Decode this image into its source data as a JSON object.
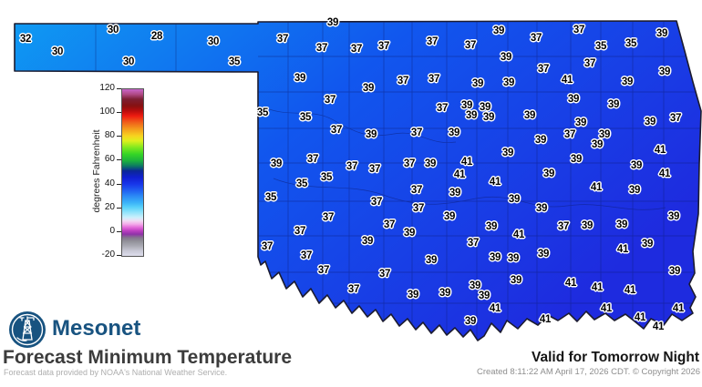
{
  "branding": {
    "logo_text": "Mesonet",
    "brand_color": "#185380"
  },
  "title": "Forecast Minimum Temperature",
  "subtitle": "Forecast data provided by NOAA's National Weather Service.",
  "validity": "Valid for Tomorrow Night",
  "created": "Created 8:11:22 AM April 17, 2026 CDT. © Copyright 2026",
  "map": {
    "region": "Oklahoma",
    "fill_west": "#0f9af2",
    "fill_mid": "#1157ee",
    "fill_east": "#1e2bdf",
    "border_color": "#1c1c30",
    "county_line_color": "#0c1a6e",
    "units": "degrees Fahrenheit"
  },
  "legend": {
    "label": "degrees Fahrenheit",
    "ticks": [
      120,
      100,
      80,
      60,
      40,
      20,
      0,
      -20
    ],
    "min": -20,
    "max": 120,
    "stops": [
      {
        "p": 0,
        "c": "#c966ca"
      },
      {
        "p": 3,
        "c": "#b04a86"
      },
      {
        "p": 6,
        "c": "#7c1f33"
      },
      {
        "p": 10,
        "c": "#871111"
      },
      {
        "p": 13,
        "c": "#b80d0d"
      },
      {
        "p": 16,
        "c": "#ee1b10"
      },
      {
        "p": 20,
        "c": "#f0611a"
      },
      {
        "p": 24,
        "c": "#f49d1c"
      },
      {
        "p": 28,
        "c": "#f7d31f"
      },
      {
        "p": 31,
        "c": "#def01e"
      },
      {
        "p": 35,
        "c": "#7fe81f"
      },
      {
        "p": 39,
        "c": "#35d526"
      },
      {
        "p": 43,
        "c": "#1bb13e"
      },
      {
        "p": 46,
        "c": "#0d7a62"
      },
      {
        "p": 49,
        "c": "#0b2796"
      },
      {
        "p": 53,
        "c": "#101fd2"
      },
      {
        "p": 57,
        "c": "#1837ea"
      },
      {
        "p": 61,
        "c": "#2162f1"
      },
      {
        "p": 64,
        "c": "#2b88f5"
      },
      {
        "p": 68,
        "c": "#3ab2f8"
      },
      {
        "p": 71,
        "c": "#5bd2fa"
      },
      {
        "p": 74,
        "c": "#93e4fb"
      },
      {
        "p": 77,
        "c": "#cdf0fc"
      },
      {
        "p": 79,
        "c": "#f2d9f3"
      },
      {
        "p": 81,
        "c": "#f3a9e9"
      },
      {
        "p": 83,
        "c": "#e168d9"
      },
      {
        "p": 85,
        "c": "#bc3fc0"
      },
      {
        "p": 87,
        "c": "#8f32a8"
      },
      {
        "p": 89,
        "c": "#85738f"
      },
      {
        "p": 91,
        "c": "#8f8f97"
      },
      {
        "p": 94,
        "c": "#a9a9b3"
      },
      {
        "p": 97,
        "c": "#c9c9d6"
      },
      {
        "p": 100,
        "c": "#dedeec"
      }
    ]
  },
  "temps": [
    [
      32,
      28,
      43
    ],
    [
      30,
      63,
      57
    ],
    [
      30,
      124,
      33
    ],
    [
      28,
      172,
      40
    ],
    [
      30,
      141,
      68
    ],
    [
      30,
      234,
      46
    ],
    [
      35,
      257,
      68
    ],
    [
      39,
      365,
      25
    ],
    [
      37,
      310,
      43
    ],
    [
      37,
      353,
      53
    ],
    [
      37,
      391,
      54
    ],
    [
      37,
      421,
      51
    ],
    [
      37,
      474,
      46
    ],
    [
      37,
      516,
      50
    ],
    [
      39,
      547,
      34
    ],
    [
      37,
      588,
      42
    ],
    [
      37,
      635,
      33
    ],
    [
      35,
      659,
      51
    ],
    [
      35,
      692,
      48
    ],
    [
      39,
      726,
      37
    ],
    [
      39,
      555,
      63
    ],
    [
      37,
      596,
      76
    ],
    [
      37,
      647,
      70
    ],
    [
      39,
      729,
      79
    ],
    [
      41,
      622,
      88
    ],
    [
      39,
      688,
      90
    ],
    [
      39,
      329,
      86
    ],
    [
      39,
      404,
      97
    ],
    [
      37,
      442,
      89
    ],
    [
      37,
      476,
      87
    ],
    [
      39,
      524,
      92
    ],
    [
      39,
      558,
      91
    ],
    [
      37,
      362,
      110
    ],
    [
      35,
      288,
      124
    ],
    [
      35,
      335,
      129
    ],
    [
      37,
      485,
      119
    ],
    [
      39,
      512,
      116
    ],
    [
      39,
      532,
      118
    ],
    [
      39,
      517,
      127
    ],
    [
      39,
      536,
      129
    ],
    [
      39,
      629,
      109
    ],
    [
      39,
      673,
      115
    ],
    [
      39,
      581,
      127
    ],
    [
      39,
      637,
      135
    ],
    [
      39,
      713,
      134
    ],
    [
      37,
      741,
      130
    ],
    [
      37,
      369,
      143
    ],
    [
      39,
      407,
      148
    ],
    [
      37,
      457,
      146
    ],
    [
      39,
      498,
      146
    ],
    [
      37,
      625,
      148
    ],
    [
      39,
      663,
      148
    ],
    [
      39,
      655,
      159
    ],
    [
      39,
      593,
      154
    ],
    [
      39,
      557,
      168
    ],
    [
      41,
      724,
      165
    ],
    [
      39,
      303,
      180
    ],
    [
      37,
      343,
      175
    ],
    [
      37,
      386,
      183
    ],
    [
      37,
      411,
      186
    ],
    [
      37,
      449,
      180
    ],
    [
      39,
      472,
      180
    ],
    [
      41,
      512,
      178
    ],
    [
      41,
      504,
      192
    ],
    [
      39,
      632,
      175
    ],
    [
      39,
      698,
      182
    ],
    [
      41,
      729,
      191
    ],
    [
      39,
      602,
      191
    ],
    [
      35,
      358,
      195
    ],
    [
      35,
      331,
      202
    ],
    [
      35,
      297,
      217
    ],
    [
      41,
      543,
      200
    ],
    [
      41,
      654,
      206
    ],
    [
      39,
      696,
      209
    ],
    [
      37,
      457,
      209
    ],
    [
      39,
      499,
      212
    ],
    [
      39,
      564,
      219
    ],
    [
      37,
      413,
      222
    ],
    [
      37,
      459,
      229
    ],
    [
      39,
      594,
      229
    ],
    [
      37,
      360,
      239
    ],
    [
      39,
      493,
      238
    ],
    [
      39,
      739,
      238
    ],
    [
      37,
      427,
      247
    ],
    [
      37,
      329,
      254
    ],
    [
      39,
      449,
      256
    ],
    [
      39,
      539,
      249
    ],
    [
      37,
      618,
      249
    ],
    [
      39,
      644,
      248
    ],
    [
      39,
      682,
      247
    ],
    [
      41,
      569,
      258
    ],
    [
      37,
      293,
      271
    ],
    [
      37,
      336,
      281
    ],
    [
      39,
      403,
      265
    ],
    [
      37,
      519,
      267
    ],
    [
      39,
      710,
      268
    ],
    [
      41,
      683,
      274
    ],
    [
      39,
      596,
      279
    ],
    [
      39,
      543,
      283
    ],
    [
      39,
      563,
      284
    ],
    [
      39,
      473,
      286
    ],
    [
      37,
      355,
      297
    ],
    [
      39,
      740,
      298
    ],
    [
      37,
      422,
      301
    ],
    [
      39,
      566,
      308
    ],
    [
      41,
      626,
      311
    ],
    [
      37,
      388,
      318
    ],
    [
      39,
      453,
      324
    ],
    [
      39,
      488,
      322
    ],
    [
      39,
      521,
      314
    ],
    [
      39,
      531,
      325
    ],
    [
      41,
      655,
      316
    ],
    [
      41,
      691,
      319
    ],
    [
      41,
      543,
      339
    ],
    [
      41,
      665,
      339
    ],
    [
      41,
      744,
      339
    ],
    [
      39,
      516,
      353
    ],
    [
      41,
      598,
      351
    ],
    [
      41,
      702,
      349
    ],
    [
      41,
      722,
      359
    ]
  ]
}
